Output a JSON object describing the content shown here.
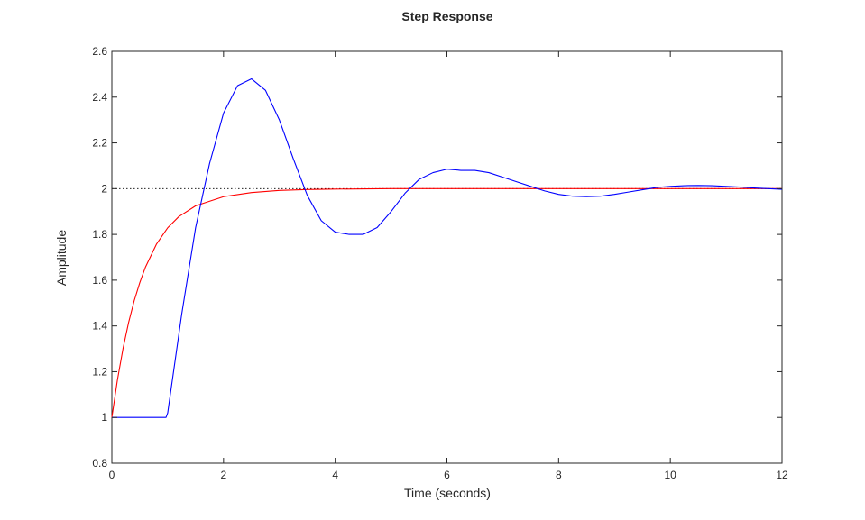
{
  "chart_data": {
    "type": "line",
    "title": "Step Response",
    "xlabel": "Time (seconds)",
    "ylabel": "Amplitude",
    "xlim": [
      0,
      12
    ],
    "ylim": [
      0.8,
      2.6
    ],
    "xticks": [
      0,
      2,
      4,
      6,
      8,
      10,
      12
    ],
    "yticks": [
      0.8,
      1,
      1.2,
      1.4,
      1.6,
      1.8,
      2,
      2.2,
      2.4,
      2.6
    ],
    "xtick_labels": [
      "0",
      "2",
      "4",
      "6",
      "8",
      "10",
      "12"
    ],
    "ytick_labels": [
      "0.8",
      "1",
      "1.2",
      "1.4",
      "1.6",
      "1.8",
      "2",
      "2.2",
      "2.4",
      "2.6"
    ],
    "grid": false,
    "reference_line": {
      "y": 2,
      "style": "dotted",
      "color": "#000000"
    },
    "series": [
      {
        "color": "#ff0000",
        "x": [
          0,
          0.1,
          0.2,
          0.3,
          0.4,
          0.5,
          0.6,
          0.8,
          1.0,
          1.2,
          1.5,
          2.0,
          2.5,
          3.0,
          3.5,
          4,
          5,
          6,
          8,
          10,
          12
        ],
        "y": [
          1.0,
          1.164,
          1.301,
          1.415,
          1.51,
          1.589,
          1.656,
          1.758,
          1.829,
          1.878,
          1.925,
          1.965,
          1.983,
          1.992,
          1.996,
          1.998,
          2.0,
          2.0,
          2.0,
          2.0,
          2.0
        ]
      },
      {
        "color": "#0000ff",
        "x": [
          0,
          0.5,
          0.97,
          1.0,
          1.25,
          1.5,
          1.75,
          2.0,
          2.25,
          2.5,
          2.75,
          3.0,
          3.25,
          3.5,
          3.75,
          4.0,
          4.25,
          4.5,
          4.75,
          5.0,
          5.25,
          5.5,
          5.75,
          6.0,
          6.25,
          6.5,
          6.75,
          7.0,
          7.25,
          7.5,
          7.75,
          8.0,
          8.25,
          8.5,
          8.75,
          9.0,
          9.25,
          9.5,
          9.75,
          10.0,
          10.25,
          10.5,
          10.75,
          11.0,
          11.25,
          11.5,
          11.75,
          12.0
        ],
        "y": [
          1.0,
          1.0,
          1.0,
          1.02,
          1.45,
          1.83,
          2.11,
          2.33,
          2.45,
          2.48,
          2.43,
          2.3,
          2.13,
          1.97,
          1.86,
          1.81,
          1.8,
          1.8,
          1.83,
          1.9,
          1.98,
          2.04,
          2.07,
          2.085,
          2.08,
          2.08,
          2.07,
          2.05,
          2.03,
          2.01,
          1.99,
          1.975,
          1.967,
          1.965,
          1.967,
          1.975,
          1.985,
          1.995,
          2.005,
          2.01,
          2.013,
          2.014,
          2.013,
          2.01,
          2.007,
          2.003,
          2.0,
          1.997
        ]
      }
    ]
  }
}
